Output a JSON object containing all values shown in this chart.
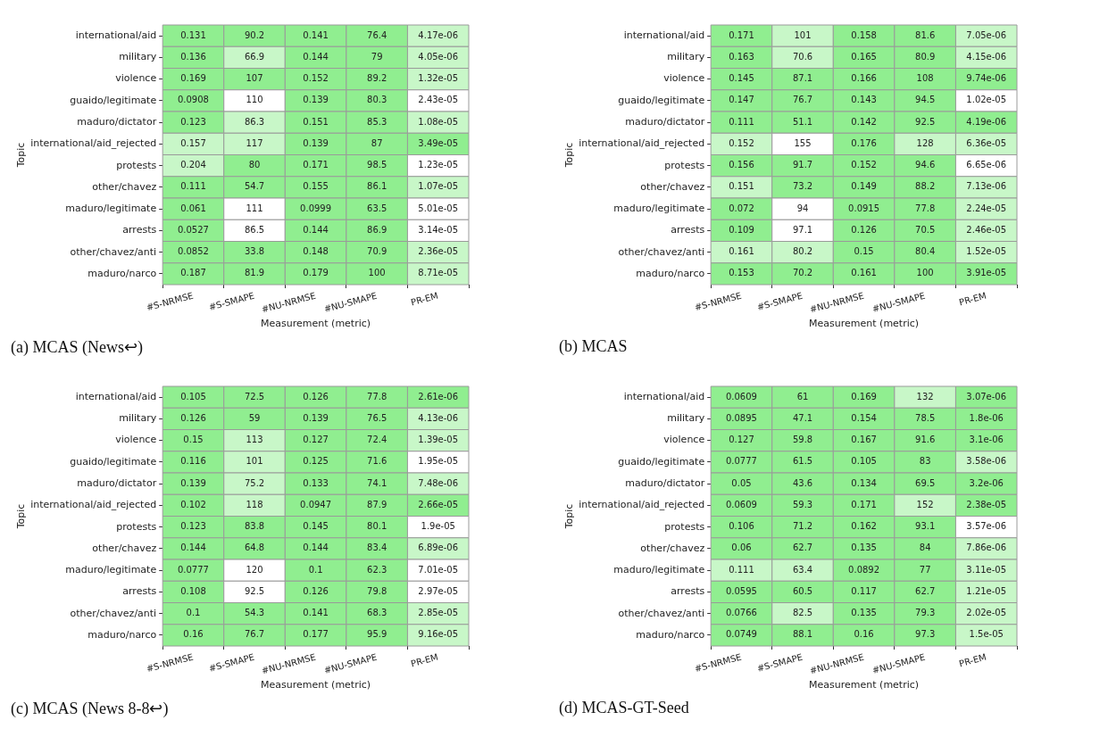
{
  "chart_data": [
    {
      "type": "heatmap",
      "title": "(a) MCAS (News↩)",
      "xlabel": "Measurement (metric)",
      "ylabel": "Topic",
      "categories": [
        "#S-NRMSE",
        "#S-SMAPE",
        "#NU-NRMSE",
        "#NU-SMAPE",
        "PR-EM"
      ],
      "y_categories": [
        "international/aid",
        "military",
        "violence",
        "guaido/legitimate",
        "maduro/dictator",
        "international/aid_rejected",
        "protests",
        "other/chavez",
        "maduro/legitimate",
        "arrests",
        "other/chavez/anti",
        "maduro/narco"
      ],
      "cells": [
        [
          0.131,
          90.2,
          0.141,
          76.4,
          4.17e-06
        ],
        [
          0.136,
          66.9,
          0.144,
          79,
          4.05e-06
        ],
        [
          0.169,
          107,
          0.152,
          89.2,
          1.32e-05
        ],
        [
          0.0908,
          110,
          0.139,
          80.3,
          2.43e-05
        ],
        [
          0.123,
          86.3,
          0.151,
          85.3,
          1.08e-05
        ],
        [
          0.157,
          117,
          0.139,
          87,
          3.49e-05
        ],
        [
          0.204,
          80,
          0.171,
          98.5,
          1.23e-05
        ],
        [
          0.111,
          54.7,
          0.155,
          86.1,
          1.07e-05
        ],
        [
          0.061,
          111,
          0.0999,
          63.5,
          5.01e-05
        ],
        [
          0.0527,
          86.5,
          0.144,
          86.9,
          3.14e-05
        ],
        [
          0.0852,
          33.8,
          0.148,
          70.9,
          2.36e-05
        ],
        [
          0.187,
          81.9,
          0.179,
          100,
          8.71e-05
        ]
      ],
      "data_labels": true,
      "colors": [
        [
          "#90ee90",
          "#90ee90",
          "#90ee90",
          "#90ee90",
          "#c8f7c8"
        ],
        [
          "#90ee90",
          "#c8f7c8",
          "#90ee90",
          "#90ee90",
          "#c8f7c8"
        ],
        [
          "#90ee90",
          "#90ee90",
          "#90ee90",
          "#90ee90",
          "#c8f7c8"
        ],
        [
          "#90ee90",
          "#ffffff",
          "#90ee90",
          "#90ee90",
          "#ffffff"
        ],
        [
          "#90ee90",
          "#c8f7c8",
          "#90ee90",
          "#90ee90",
          "#c8f7c8"
        ],
        [
          "#c8f7c8",
          "#c8f7c8",
          "#90ee90",
          "#90ee90",
          "#90ee90"
        ],
        [
          "#c8f7c8",
          "#90ee90",
          "#90ee90",
          "#90ee90",
          "#ffffff"
        ],
        [
          "#90ee90",
          "#90ee90",
          "#90ee90",
          "#90ee90",
          "#c8f7c8"
        ],
        [
          "#90ee90",
          "#ffffff",
          "#90ee90",
          "#90ee90",
          "#ffffff"
        ],
        [
          "#90ee90",
          "#ffffff",
          "#90ee90",
          "#90ee90",
          "#ffffff"
        ],
        [
          "#90ee90",
          "#90ee90",
          "#90ee90",
          "#90ee90",
          "#c8f7c8"
        ],
        [
          "#90ee90",
          "#90ee90",
          "#90ee90",
          "#90ee90",
          "#c8f7c8"
        ]
      ]
    },
    {
      "type": "heatmap",
      "title": "(b) MCAS",
      "xlabel": "Measurement (metric)",
      "ylabel": "Topic",
      "categories": [
        "#S-NRMSE",
        "#S-SMAPE",
        "#NU-NRMSE",
        "#NU-SMAPE",
        "PR-EM"
      ],
      "y_categories": [
        "international/aid",
        "military",
        "violence",
        "guaido/legitimate",
        "maduro/dictator",
        "international/aid_rejected",
        "protests",
        "other/chavez",
        "maduro/legitimate",
        "arrests",
        "other/chavez/anti",
        "maduro/narco"
      ],
      "cells": [
        [
          0.171,
          101,
          0.158,
          81.6,
          7.05e-06
        ],
        [
          0.163,
          70.6,
          0.165,
          80.9,
          4.15e-06
        ],
        [
          0.145,
          87.1,
          0.166,
          108,
          9.74e-06
        ],
        [
          0.147,
          76.7,
          0.143,
          94.5,
          1.02e-05
        ],
        [
          0.111,
          51.1,
          0.142,
          92.5,
          4.19e-06
        ],
        [
          0.152,
          155,
          0.176,
          128,
          6.36e-05
        ],
        [
          0.156,
          91.7,
          0.152,
          94.6,
          6.65e-06
        ],
        [
          0.151,
          73.2,
          0.149,
          88.2,
          7.13e-06
        ],
        [
          0.072,
          94,
          0.0915,
          77.8,
          2.24e-05
        ],
        [
          0.109,
          97.1,
          0.126,
          70.5,
          2.46e-05
        ],
        [
          0.161,
          80.2,
          0.15,
          80.4,
          1.52e-05
        ],
        [
          0.153,
          70.2,
          0.161,
          100,
          3.91e-05
        ]
      ],
      "data_labels": true,
      "colors": [
        [
          "#90ee90",
          "#c8f7c8",
          "#90ee90",
          "#90ee90",
          "#c8f7c8"
        ],
        [
          "#90ee90",
          "#c8f7c8",
          "#90ee90",
          "#90ee90",
          "#c8f7c8"
        ],
        [
          "#90ee90",
          "#90ee90",
          "#90ee90",
          "#90ee90",
          "#90ee90"
        ],
        [
          "#90ee90",
          "#90ee90",
          "#90ee90",
          "#90ee90",
          "#ffffff"
        ],
        [
          "#90ee90",
          "#90ee90",
          "#90ee90",
          "#90ee90",
          "#90ee90"
        ],
        [
          "#c8f7c8",
          "#ffffff",
          "#90ee90",
          "#c8f7c8",
          "#c8f7c8"
        ],
        [
          "#90ee90",
          "#90ee90",
          "#90ee90",
          "#90ee90",
          "#ffffff"
        ],
        [
          "#c8f7c8",
          "#90ee90",
          "#90ee90",
          "#90ee90",
          "#c8f7c8"
        ],
        [
          "#90ee90",
          "#ffffff",
          "#90ee90",
          "#90ee90",
          "#c8f7c8"
        ],
        [
          "#90ee90",
          "#ffffff",
          "#90ee90",
          "#90ee90",
          "#c8f7c8"
        ],
        [
          "#c8f7c8",
          "#c8f7c8",
          "#90ee90",
          "#90ee90",
          "#c8f7c8"
        ],
        [
          "#90ee90",
          "#90ee90",
          "#90ee90",
          "#90ee90",
          "#90ee90"
        ]
      ]
    },
    {
      "type": "heatmap",
      "title": "(c) MCAS (News 8-8↩)",
      "xlabel": "Measurement (metric)",
      "ylabel": "Topic",
      "categories": [
        "#S-NRMSE",
        "#S-SMAPE",
        "#NU-NRMSE",
        "#NU-SMAPE",
        "PR-EM"
      ],
      "y_categories": [
        "international/aid",
        "military",
        "violence",
        "guaido/legitimate",
        "maduro/dictator",
        "international/aid_rejected",
        "protests",
        "other/chavez",
        "maduro/legitimate",
        "arrests",
        "other/chavez/anti",
        "maduro/narco"
      ],
      "cells": [
        [
          0.105,
          72.5,
          0.126,
          77.8,
          2.61e-06
        ],
        [
          0.126,
          59,
          0.139,
          76.5,
          4.13e-06
        ],
        [
          0.15,
          113,
          0.127,
          72.4,
          1.39e-05
        ],
        [
          0.116,
          101,
          0.125,
          71.6,
          1.95e-05
        ],
        [
          0.139,
          75.2,
          0.133,
          74.1,
          7.48e-06
        ],
        [
          0.102,
          118,
          0.0947,
          87.9,
          2.66e-05
        ],
        [
          0.123,
          83.8,
          0.145,
          80.1,
          1.9e-05
        ],
        [
          0.144,
          64.8,
          0.144,
          83.4,
          6.89e-06
        ],
        [
          0.0777,
          120,
          0.1,
          62.3,
          7.01e-05
        ],
        [
          0.108,
          92.5,
          0.126,
          79.8,
          2.97e-05
        ],
        [
          0.1,
          54.3,
          0.141,
          68.3,
          2.85e-05
        ],
        [
          0.16,
          76.7,
          0.177,
          95.9,
          9.16e-05
        ]
      ],
      "data_labels": true,
      "colors": [
        [
          "#90ee90",
          "#90ee90",
          "#90ee90",
          "#90ee90",
          "#90ee90"
        ],
        [
          "#90ee90",
          "#90ee90",
          "#90ee90",
          "#90ee90",
          "#c8f7c8"
        ],
        [
          "#90ee90",
          "#c8f7c8",
          "#90ee90",
          "#90ee90",
          "#c8f7c8"
        ],
        [
          "#90ee90",
          "#c8f7c8",
          "#90ee90",
          "#90ee90",
          "#ffffff"
        ],
        [
          "#90ee90",
          "#c8f7c8",
          "#90ee90",
          "#90ee90",
          "#c8f7c8"
        ],
        [
          "#90ee90",
          "#c8f7c8",
          "#90ee90",
          "#90ee90",
          "#90ee90"
        ],
        [
          "#90ee90",
          "#90ee90",
          "#90ee90",
          "#90ee90",
          "#ffffff"
        ],
        [
          "#90ee90",
          "#90ee90",
          "#90ee90",
          "#90ee90",
          "#c8f7c8"
        ],
        [
          "#90ee90",
          "#ffffff",
          "#90ee90",
          "#90ee90",
          "#ffffff"
        ],
        [
          "#90ee90",
          "#ffffff",
          "#90ee90",
          "#90ee90",
          "#ffffff"
        ],
        [
          "#90ee90",
          "#90ee90",
          "#90ee90",
          "#90ee90",
          "#c8f7c8"
        ],
        [
          "#90ee90",
          "#90ee90",
          "#90ee90",
          "#90ee90",
          "#c8f7c8"
        ]
      ]
    },
    {
      "type": "heatmap",
      "title": "(d) MCAS-GT-Seed",
      "xlabel": "Measurement (metric)",
      "ylabel": "Topic",
      "categories": [
        "#S-NRMSE",
        "#S-SMAPE",
        "#NU-NRMSE",
        "#NU-SMAPE",
        "PR-EM"
      ],
      "y_categories": [
        "international/aid",
        "military",
        "violence",
        "guaido/legitimate",
        "maduro/dictator",
        "international/aid_rejected",
        "protests",
        "other/chavez",
        "maduro/legitimate",
        "arrests",
        "other/chavez/anti",
        "maduro/narco"
      ],
      "cells": [
        [
          0.0609,
          61,
          0.169,
          132,
          3.07e-06
        ],
        [
          0.0895,
          47.1,
          0.154,
          78.5,
          1.8e-06
        ],
        [
          0.127,
          59.8,
          0.167,
          91.6,
          3.1e-06
        ],
        [
          0.0777,
          61.5,
          0.105,
          83,
          3.58e-06
        ],
        [
          0.05,
          43.6,
          0.134,
          69.5,
          3.2e-06
        ],
        [
          0.0609,
          59.3,
          0.171,
          152,
          2.38e-05
        ],
        [
          0.106,
          71.2,
          0.162,
          93.1,
          3.57e-06
        ],
        [
          0.06,
          62.7,
          0.135,
          84,
          7.86e-06
        ],
        [
          0.111,
          63.4,
          0.0892,
          77,
          3.11e-05
        ],
        [
          0.0595,
          60.5,
          0.117,
          62.7,
          1.21e-05
        ],
        [
          0.0766,
          82.5,
          0.135,
          79.3,
          2.02e-05
        ],
        [
          0.0749,
          88.1,
          0.16,
          97.3,
          1.5e-05
        ]
      ],
      "data_labels": true,
      "colors": [
        [
          "#90ee90",
          "#90ee90",
          "#90ee90",
          "#c8f7c8",
          "#90ee90"
        ],
        [
          "#90ee90",
          "#90ee90",
          "#90ee90",
          "#90ee90",
          "#90ee90"
        ],
        [
          "#90ee90",
          "#90ee90",
          "#90ee90",
          "#90ee90",
          "#90ee90"
        ],
        [
          "#90ee90",
          "#90ee90",
          "#90ee90",
          "#90ee90",
          "#c8f7c8"
        ],
        [
          "#90ee90",
          "#90ee90",
          "#90ee90",
          "#90ee90",
          "#90ee90"
        ],
        [
          "#90ee90",
          "#90ee90",
          "#90ee90",
          "#c8f7c8",
          "#90ee90"
        ],
        [
          "#90ee90",
          "#90ee90",
          "#90ee90",
          "#90ee90",
          "#ffffff"
        ],
        [
          "#90ee90",
          "#90ee90",
          "#90ee90",
          "#90ee90",
          "#c8f7c8"
        ],
        [
          "#c8f7c8",
          "#c8f7c8",
          "#90ee90",
          "#90ee90",
          "#c8f7c8"
        ],
        [
          "#90ee90",
          "#90ee90",
          "#90ee90",
          "#90ee90",
          "#c8f7c8"
        ],
        [
          "#90ee90",
          "#c8f7c8",
          "#90ee90",
          "#90ee90",
          "#c8f7c8"
        ],
        [
          "#90ee90",
          "#90ee90",
          "#90ee90",
          "#90ee90",
          "#c8f7c8"
        ]
      ]
    }
  ]
}
